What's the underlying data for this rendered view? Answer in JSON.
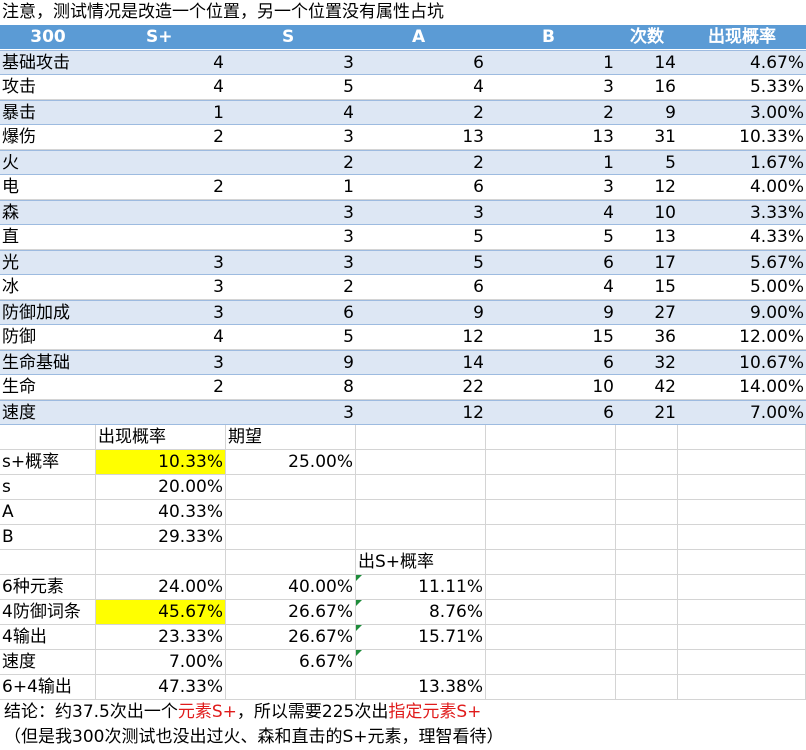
{
  "note": "注意，测试情况是改造一个位置，另一个位置没有属性占坑",
  "table": {
    "headers": [
      "300",
      "S+",
      "S",
      "A",
      "B",
      "次数",
      "出现概率"
    ],
    "rows": [
      {
        "name": "基础攻击",
        "splus": "4",
        "s": "3",
        "a": "6",
        "b": "1",
        "count": "14",
        "rate": "4.67%"
      },
      {
        "name": "攻击",
        "splus": "4",
        "s": "5",
        "a": "4",
        "b": "3",
        "count": "16",
        "rate": "5.33%"
      },
      {
        "name": "暴击",
        "splus": "1",
        "s": "4",
        "a": "2",
        "b": "2",
        "count": "9",
        "rate": "3.00%"
      },
      {
        "name": "爆伤",
        "splus": "2",
        "s": "3",
        "a": "13",
        "b": "13",
        "count": "31",
        "rate": "10.33%"
      },
      {
        "name": "火",
        "splus": "",
        "s": "2",
        "a": "2",
        "b": "1",
        "count": "5",
        "rate": "1.67%"
      },
      {
        "name": "电",
        "splus": "2",
        "s": "1",
        "a": "6",
        "b": "3",
        "count": "12",
        "rate": "4.00%"
      },
      {
        "name": "森",
        "splus": "",
        "s": "3",
        "a": "3",
        "b": "4",
        "count": "10",
        "rate": "3.33%"
      },
      {
        "name": "直",
        "splus": "",
        "s": "3",
        "a": "5",
        "b": "5",
        "count": "13",
        "rate": "4.33%"
      },
      {
        "name": "光",
        "splus": "3",
        "s": "3",
        "a": "5",
        "b": "6",
        "count": "17",
        "rate": "5.67%"
      },
      {
        "name": "冰",
        "splus": "3",
        "s": "2",
        "a": "6",
        "b": "4",
        "count": "15",
        "rate": "5.00%"
      },
      {
        "name": "防御加成",
        "splus": "3",
        "s": "6",
        "a": "9",
        "b": "9",
        "count": "27",
        "rate": "9.00%"
      },
      {
        "name": "防御",
        "splus": "4",
        "s": "5",
        "a": "12",
        "b": "15",
        "count": "36",
        "rate": "12.00%"
      },
      {
        "name": "生命基础",
        "splus": "3",
        "s": "9",
        "a": "14",
        "b": "6",
        "count": "32",
        "rate": "10.67%"
      },
      {
        "name": "生命",
        "splus": "2",
        "s": "8",
        "a": "22",
        "b": "10",
        "count": "42",
        "rate": "14.00%"
      },
      {
        "name": "速度",
        "splus": "",
        "s": "3",
        "a": "12",
        "b": "6",
        "count": "21",
        "rate": "7.00%"
      }
    ]
  },
  "summary": {
    "header_rate": "出现概率",
    "header_expect": "期望",
    "rows": [
      {
        "label": "s+概率",
        "rate": "10.33%",
        "expect": "25.00%"
      },
      {
        "label": "s",
        "rate": "20.00%",
        "expect": ""
      },
      {
        "label": "A",
        "rate": "40.33%",
        "expect": ""
      },
      {
        "label": "B",
        "rate": "29.33%",
        "expect": ""
      }
    ]
  },
  "elements": {
    "header_splus_rate": "出S+概率",
    "rows": [
      {
        "label": "6种元素",
        "rate": "24.00%",
        "expect": "40.00%",
        "splus": "11.11%"
      },
      {
        "label": "4防御词条",
        "rate": "45.67%",
        "expect": "26.67%",
        "splus": "8.76%"
      },
      {
        "label": "4输出",
        "rate": "23.33%",
        "expect": "26.67%",
        "splus": "15.71%"
      },
      {
        "label": "速度",
        "rate": "7.00%",
        "expect": "6.67%",
        "splus": ""
      },
      {
        "label": "6+4输出",
        "rate": "47.33%",
        "expect": "",
        "splus": "13.38%"
      }
    ]
  },
  "conclusion": {
    "p1": "结论：约37.5次出一个",
    "r1": "元素S+",
    "p2": "，所以需要225次出",
    "r2": "指定元素S+",
    "line2": "（但是我300次测试也没出过火、森和直击的S+元素，理智看待）"
  }
}
